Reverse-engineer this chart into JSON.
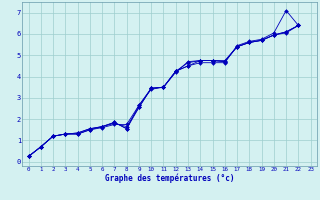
{
  "xlabel": "Graphe des températures (°c)",
  "xlim": [
    -0.5,
    23.5
  ],
  "ylim": [
    -0.2,
    7.5
  ],
  "xticks": [
    0,
    1,
    2,
    3,
    4,
    5,
    6,
    7,
    8,
    9,
    10,
    11,
    12,
    13,
    14,
    15,
    16,
    17,
    18,
    19,
    20,
    21,
    22,
    23
  ],
  "yticks": [
    0,
    1,
    2,
    3,
    4,
    5,
    6,
    7
  ],
  "bg_color": "#d4f1f1",
  "grid_color": "#9ecece",
  "line_color": "#0000bb",
  "marker": "D",
  "marker_size": 2.0,
  "linewidth": 0.6,
  "lines": [
    [
      [
        0,
        0.25
      ],
      [
        1,
        0.7
      ],
      [
        2,
        1.2
      ],
      [
        3,
        1.3
      ],
      [
        4,
        1.35
      ],
      [
        5,
        1.55
      ],
      [
        6,
        1.65
      ],
      [
        7,
        1.8
      ],
      [
        8,
        1.65
      ],
      [
        9,
        2.55
      ],
      [
        10,
        3.45
      ],
      [
        11,
        3.5
      ],
      [
        12,
        4.25
      ],
      [
        13,
        4.5
      ],
      [
        14,
        4.65
      ],
      [
        15,
        4.65
      ],
      [
        16,
        4.65
      ],
      [
        17,
        5.45
      ],
      [
        18,
        5.65
      ],
      [
        19,
        5.75
      ],
      [
        20,
        6.05
      ],
      [
        21,
        7.1
      ],
      [
        22,
        6.4
      ]
    ],
    [
      [
        0,
        0.25
      ],
      [
        1,
        0.7
      ],
      [
        2,
        1.2
      ],
      [
        3,
        1.3
      ],
      [
        4,
        1.3
      ],
      [
        5,
        1.5
      ],
      [
        6,
        1.6
      ],
      [
        7,
        1.75
      ],
      [
        8,
        1.75
      ],
      [
        9,
        2.65
      ],
      [
        10,
        3.4
      ],
      [
        11,
        3.5
      ],
      [
        12,
        4.25
      ],
      [
        13,
        4.5
      ],
      [
        14,
        4.75
      ],
      [
        15,
        4.75
      ],
      [
        16,
        4.75
      ],
      [
        17,
        5.4
      ],
      [
        18,
        5.6
      ],
      [
        19,
        5.7
      ],
      [
        20,
        5.95
      ],
      [
        21,
        6.1
      ],
      [
        22,
        6.4
      ]
    ],
    [
      [
        0,
        0.25
      ],
      [
        1,
        0.7
      ],
      [
        2,
        1.2
      ],
      [
        3,
        1.3
      ],
      [
        4,
        1.3
      ],
      [
        5,
        1.5
      ],
      [
        6,
        1.65
      ],
      [
        7,
        1.85
      ],
      [
        8,
        1.55
      ],
      [
        9,
        2.65
      ],
      [
        10,
        3.45
      ],
      [
        11,
        3.5
      ],
      [
        12,
        4.2
      ],
      [
        13,
        4.7
      ],
      [
        14,
        4.75
      ],
      [
        15,
        4.75
      ],
      [
        16,
        4.7
      ],
      [
        17,
        5.4
      ],
      [
        18,
        5.6
      ],
      [
        19,
        5.7
      ],
      [
        20,
        5.95
      ],
      [
        21,
        6.05
      ],
      [
        22,
        6.4
      ]
    ],
    [
      [
        0,
        0.25
      ],
      [
        1,
        0.7
      ],
      [
        2,
        1.2
      ],
      [
        3,
        1.3
      ],
      [
        4,
        1.35
      ],
      [
        5,
        1.55
      ],
      [
        6,
        1.65
      ],
      [
        7,
        1.85
      ],
      [
        8,
        1.55
      ],
      [
        9,
        2.55
      ],
      [
        10,
        3.45
      ],
      [
        11,
        3.5
      ],
      [
        12,
        4.25
      ],
      [
        13,
        4.65
      ],
      [
        14,
        4.75
      ],
      [
        15,
        4.75
      ],
      [
        16,
        4.7
      ],
      [
        17,
        5.4
      ],
      [
        18,
        5.6
      ],
      [
        19,
        5.7
      ],
      [
        20,
        5.95
      ],
      [
        21,
        6.1
      ],
      [
        22,
        6.4
      ]
    ]
  ]
}
